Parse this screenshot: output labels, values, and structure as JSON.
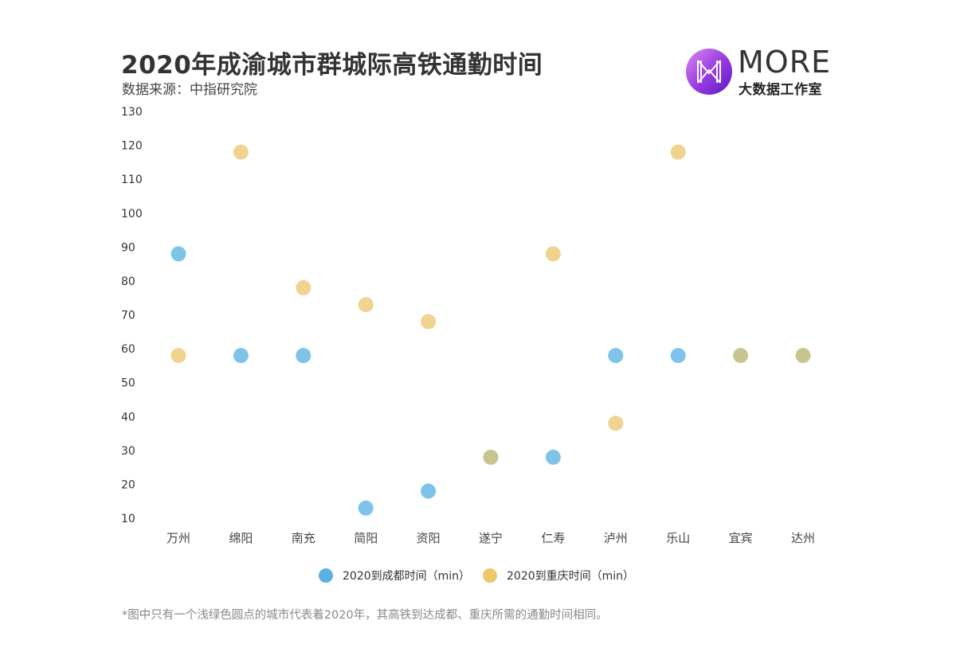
{
  "title": "2020年成渝城市群城际高铁通勤时间",
  "subtitle": "数据来源：中指研究院",
  "logo": {
    "main": "MORE",
    "sub": "大数据工作室",
    "icon": "more-logo-icon"
  },
  "footnote": "*图中只有一个浅绿色圆点的城市代表着2020年，其高铁到达成都、重庆所需的通勤时间相同。",
  "colors": {
    "chengdu": "#7fc3eb",
    "chongqing": "#f0d38e",
    "overlap": "#c9c48f",
    "legend_chengdu": "#5ab0e4",
    "legend_chongqing": "#ecc86a"
  },
  "chart_data": {
    "type": "scatter",
    "title": "2020年成渝城市群城际高铁通勤时间",
    "categories": [
      "万州",
      "绵阳",
      "南充",
      "简阳",
      "资阳",
      "遂宁",
      "仁寿",
      "泸州",
      "乐山",
      "宜宾",
      "达州"
    ],
    "yticks": [
      10,
      20,
      30,
      40,
      50,
      60,
      70,
      80,
      90,
      100,
      110,
      120,
      130
    ],
    "ylim": [
      10,
      130
    ],
    "series": [
      {
        "name": "2020到成都时间（min）",
        "values": [
          88,
          58,
          58,
          13,
          18,
          28,
          28,
          58,
          58,
          58,
          58
        ]
      },
      {
        "name": "2020到重庆时间（min）",
        "values": [
          58,
          118,
          78,
          73,
          68,
          28,
          88,
          38,
          118,
          58,
          58
        ]
      }
    ],
    "legend_position": "bottom-center",
    "grid": false
  }
}
